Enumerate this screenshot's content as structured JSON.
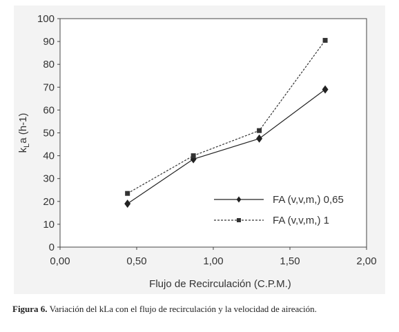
{
  "chart_data": {
    "type": "line",
    "title": "",
    "xlabel": "Flujo de Recirculación (C.P.M.)",
    "ylabel": "kLa (h-1)",
    "ylabel_parts": {
      "k": "k",
      "sub": "L",
      "a": "a (h-1)"
    },
    "xlim": [
      0,
      2
    ],
    "ylim": [
      0,
      100
    ],
    "x_ticks": [
      "0,00",
      "0,50",
      "1,00",
      "1,50",
      "2,00"
    ],
    "x_tick_values": [
      0,
      0.5,
      1,
      1.5,
      2
    ],
    "y_ticks": [
      "0",
      "10",
      "20",
      "30",
      "40",
      "50",
      "60",
      "70",
      "80",
      "90",
      "100"
    ],
    "y_tick_values": [
      0,
      10,
      20,
      30,
      40,
      50,
      60,
      70,
      80,
      90,
      100
    ],
    "grid": false,
    "legend_position": "lower-right",
    "series": [
      {
        "name": "FA (v,v,m,) 0,65",
        "style": "solid",
        "marker": "diamond",
        "color": "#222222",
        "x": [
          0.44,
          0.87,
          1.3,
          1.73
        ],
        "y": [
          19,
          38.5,
          47.5,
          69
        ]
      },
      {
        "name": "FA (v,v,m,) 1",
        "style": "dashed",
        "marker": "square",
        "color": "#333333",
        "x": [
          0.44,
          0.87,
          1.3,
          1.73
        ],
        "y": [
          23.5,
          40,
          51,
          90.5
        ]
      }
    ]
  },
  "caption": {
    "label": "Figura 6.",
    "text": " Variación del kLa con el flujo de recirculación y la velocidad de aireación."
  }
}
